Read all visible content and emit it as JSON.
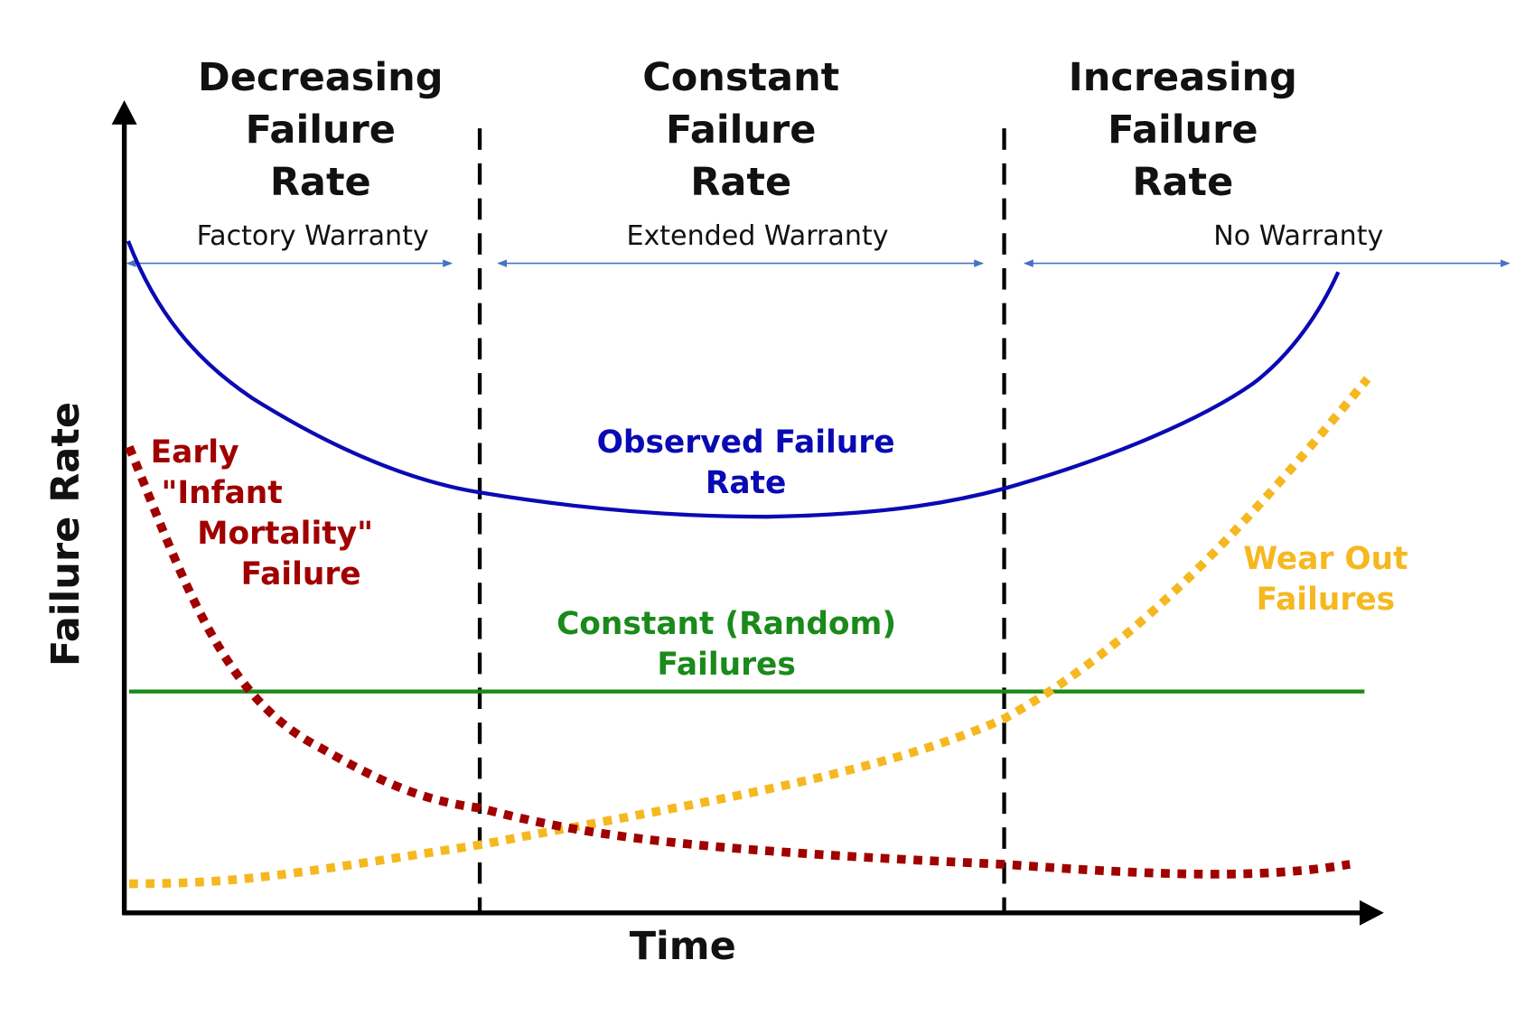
{
  "regions": [
    {
      "title_lines": [
        "Decreasing",
        "Failure",
        "Rate"
      ],
      "warranty": "Factory Warranty"
    },
    {
      "title_lines": [
        "Constant",
        "Failure",
        "Rate"
      ],
      "warranty": "Extended Warranty"
    },
    {
      "title_lines": [
        "Increasing",
        "Failure",
        "Rate"
      ],
      "warranty": "No Warranty"
    }
  ],
  "axes": {
    "x_label": "Time",
    "y_label": "Failure Rate"
  },
  "curves": {
    "observed": {
      "label_lines": [
        "Observed Failure",
        "Rate"
      ]
    },
    "infant": {
      "label_lines": [
        "Early",
        "\"Infant",
        "Mortality\"",
        "Failure"
      ]
    },
    "random": {
      "label_lines": [
        "Constant (Random)",
        "Failures"
      ]
    },
    "wearout": {
      "label_lines": [
        "Wear Out",
        "Failures"
      ]
    }
  }
}
